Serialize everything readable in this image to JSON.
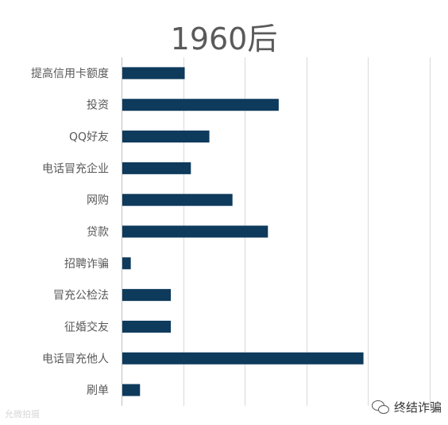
{
  "chart_data": {
    "type": "bar",
    "orientation": "horizontal",
    "title": "1960后",
    "categories": [
      "提高信用卡额度",
      "投资",
      "QQ好友",
      "电话冒充企业",
      "网购",
      "贷款",
      "招聘诈骗",
      "冒充公检法",
      "征婚交友",
      "电话冒充他人",
      "刷单"
    ],
    "values": [
      2.05,
      5.1,
      2.85,
      2.25,
      3.6,
      4.75,
      0.3,
      1.6,
      1.6,
      7.85,
      0.6
    ],
    "xlim": [
      0,
      10
    ],
    "grid": true,
    "legend": "none",
    "tick_labels_x": [],
    "bar_color": "#0e3a5c"
  },
  "watermark": {
    "left_text": "允微拍摄",
    "right_text": "终结诈骗",
    "right_icon": "wechat-icon"
  }
}
